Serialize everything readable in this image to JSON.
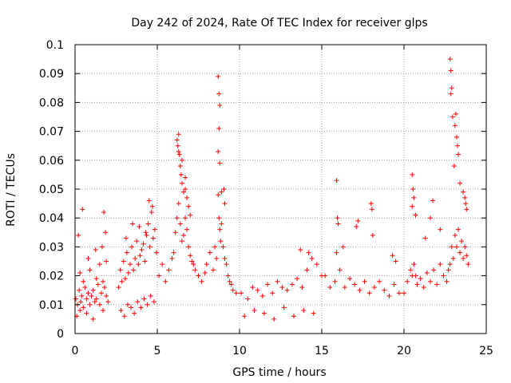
{
  "chart_data": {
    "type": "scatter",
    "title": "Day 242 of 2024, Rate Of TEC Index for receiver glps",
    "xlabel": "GPS time / hours",
    "ylabel": "ROTI / TECUs",
    "xlim": [
      0,
      25
    ],
    "ylim": [
      0,
      0.1
    ],
    "xticks": [
      0,
      5,
      10,
      15,
      20,
      25
    ],
    "xtick_labels": [
      "0",
      "5",
      "10",
      "15",
      "20",
      "25"
    ],
    "yticks": [
      0,
      0.01,
      0.02,
      0.03,
      0.04,
      0.05,
      0.06,
      0.07,
      0.08,
      0.09,
      0.1
    ],
    "ytick_labels": [
      "0",
      "0.01",
      "0.02",
      "0.03",
      "0.04",
      "0.05",
      "0.06",
      "0.07",
      "0.08",
      "0.09",
      "0.1"
    ],
    "grid": true,
    "legend": "none",
    "marker": "+",
    "marker_color": "#ff0000",
    "series": [
      {
        "x": [
          0.05,
          0.15,
          0.25,
          0.3,
          0.35,
          0.4,
          0.5,
          0.6,
          0.7,
          0.8,
          0.9,
          1.0,
          1.1,
          1.2,
          1.3,
          1.4,
          1.5,
          1.6,
          1.7,
          1.8,
          1.9,
          2.0,
          0.1,
          0.3,
          0.5,
          0.7,
          0.9,
          1.1,
          1.3,
          1.5,
          1.7,
          1.9,
          0.2,
          0.45,
          0.8,
          1.25,
          1.65,
          1.75,
          1.85,
          2.65,
          2.75,
          2.85,
          2.95,
          3.05,
          3.15,
          3.25,
          3.35,
          3.45,
          3.55,
          3.65,
          3.75,
          3.85,
          3.95,
          4.05,
          4.15,
          4.25,
          4.35,
          4.45,
          4.55,
          4.65,
          4.75,
          4.85,
          4.95,
          2.8,
          3.0,
          3.2,
          3.4,
          3.6,
          3.8,
          4.0,
          4.2,
          4.4,
          4.6,
          4.8,
          3.1,
          3.5,
          3.9,
          4.3,
          4.5,
          4.7,
          5.1,
          5.3,
          5.5,
          5.7,
          5.9,
          6.0,
          6.1,
          6.2,
          6.3,
          6.4,
          6.5,
          6.6,
          6.7,
          6.8,
          6.9,
          7.0,
          7.1,
          7.2,
          7.3,
          7.5,
          7.7,
          7.9,
          6.2,
          6.25,
          6.3,
          6.35,
          6.4,
          6.45,
          6.5,
          6.6,
          6.7,
          6.8,
          6.9,
          7.0,
          6.3,
          6.5,
          6.7,
          8.0,
          8.2,
          8.4,
          8.5,
          8.6,
          8.7,
          8.75,
          8.8,
          8.85,
          8.9,
          9.0,
          9.1,
          9.2,
          9.3,
          9.4,
          9.5,
          9.6,
          9.8,
          8.7,
          8.75,
          8.8,
          8.75,
          8.7,
          8.8,
          8.9,
          9.05,
          9.1,
          10.1,
          10.5,
          10.8,
          11.1,
          11.4,
          11.7,
          12.0,
          12.3,
          12.6,
          12.9,
          13.2,
          13.5,
          13.8,
          14.1,
          14.4,
          14.7,
          15.0,
          10.3,
          10.9,
          11.5,
          12.1,
          12.7,
          13.3,
          13.9,
          14.5,
          14.2,
          13.7,
          15.2,
          15.5,
          15.8,
          16.1,
          16.4,
          16.7,
          17.0,
          17.3,
          17.6,
          17.9,
          18.2,
          18.5,
          18.8,
          19.1,
          19.4,
          19.7,
          15.9,
          15.95,
          16.0,
          15.9,
          16.3,
          17.1,
          17.2,
          18.0,
          18.05,
          18.1,
          19.3,
          19.5,
          20.0,
          20.2,
          20.4,
          20.5,
          20.6,
          20.7,
          20.8,
          21.0,
          21.2,
          21.4,
          21.6,
          21.8,
          22.0,
          22.2,
          22.4,
          20.5,
          20.55,
          20.6,
          20.5,
          20.7,
          21.3,
          21.6,
          21.75,
          22.2,
          22.6,
          22.7,
          22.8,
          22.9,
          23.0,
          23.1,
          23.2,
          23.3,
          23.4,
          23.5,
          23.6,
          23.7,
          23.8,
          23.9,
          22.8,
          22.85,
          22.9,
          22.85,
          22.95,
          23.1,
          23.15,
          23.2,
          23.25,
          23.3,
          23.05,
          23.4,
          23.6,
          23.7,
          23.75,
          23.8
        ],
        "y": [
          0.012,
          0.01,
          0.015,
          0.008,
          0.011,
          0.013,
          0.009,
          0.016,
          0.012,
          0.014,
          0.01,
          0.013,
          0.015,
          0.011,
          0.012,
          0.017,
          0.01,
          0.014,
          0.018,
          0.016,
          0.013,
          0.011,
          0.006,
          0.021,
          0.018,
          0.007,
          0.022,
          0.005,
          0.019,
          0.024,
          0.008,
          0.025,
          0.034,
          0.043,
          0.026,
          0.029,
          0.03,
          0.042,
          0.035,
          0.016,
          0.022,
          0.018,
          0.025,
          0.019,
          0.028,
          0.021,
          0.024,
          0.03,
          0.022,
          0.026,
          0.032,
          0.024,
          0.027,
          0.029,
          0.031,
          0.025,
          0.034,
          0.038,
          0.03,
          0.042,
          0.033,
          0.036,
          0.028,
          0.008,
          0.006,
          0.01,
          0.009,
          0.007,
          0.011,
          0.009,
          0.012,
          0.01,
          0.013,
          0.011,
          0.033,
          0.038,
          0.037,
          0.035,
          0.046,
          0.044,
          0.02,
          0.024,
          0.018,
          0.022,
          0.026,
          0.028,
          0.035,
          0.04,
          0.045,
          0.038,
          0.032,
          0.034,
          0.04,
          0.036,
          0.03,
          0.027,
          0.025,
          0.024,
          0.022,
          0.02,
          0.018,
          0.021,
          0.067,
          0.065,
          0.069,
          0.062,
          0.058,
          0.055,
          0.052,
          0.049,
          0.05,
          0.047,
          0.044,
          0.041,
          0.063,
          0.06,
          0.054,
          0.024,
          0.028,
          0.022,
          0.03,
          0.026,
          0.048,
          0.04,
          0.036,
          0.032,
          0.038,
          0.03,
          0.026,
          0.024,
          0.02,
          0.018,
          0.017,
          0.015,
          0.014,
          0.089,
          0.083,
          0.079,
          0.071,
          0.063,
          0.059,
          0.049,
          0.05,
          0.045,
          0.014,
          0.012,
          0.016,
          0.015,
          0.013,
          0.017,
          0.014,
          0.018,
          0.016,
          0.015,
          0.017,
          0.019,
          0.016,
          0.022,
          0.026,
          0.024,
          0.02,
          0.006,
          0.008,
          0.007,
          0.005,
          0.009,
          0.006,
          0.008,
          0.007,
          0.028,
          0.029,
          0.02,
          0.016,
          0.018,
          0.022,
          0.016,
          0.019,
          0.017,
          0.015,
          0.018,
          0.014,
          0.016,
          0.018,
          0.015,
          0.013,
          0.017,
          0.014,
          0.053,
          0.04,
          0.038,
          0.028,
          0.03,
          0.037,
          0.039,
          0.045,
          0.043,
          0.034,
          0.027,
          0.025,
          0.014,
          0.018,
          0.022,
          0.02,
          0.024,
          0.02,
          0.017,
          0.019,
          0.016,
          0.021,
          0.018,
          0.022,
          0.017,
          0.024,
          0.02,
          0.055,
          0.05,
          0.047,
          0.044,
          0.041,
          0.033,
          0.04,
          0.046,
          0.036,
          0.018,
          0.022,
          0.024,
          0.03,
          0.026,
          0.034,
          0.03,
          0.036,
          0.028,
          0.032,
          0.026,
          0.03,
          0.027,
          0.024,
          0.095,
          0.091,
          0.085,
          0.083,
          0.075,
          0.072,
          0.076,
          0.068,
          0.065,
          0.062,
          0.058,
          0.052,
          0.049,
          0.047,
          0.045,
          0.043
        ]
      }
    ]
  }
}
